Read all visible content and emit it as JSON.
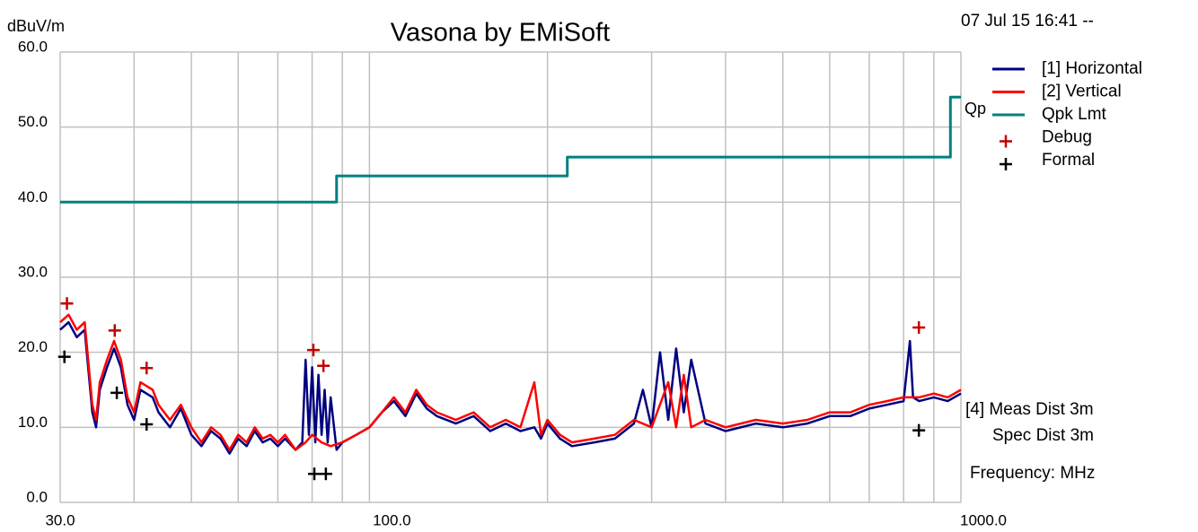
{
  "chart_data": {
    "type": "line",
    "title": "Vasona by EMiSoft",
    "ylabel": "dBuV/m",
    "timestamp": "07 Jul 15 16:41 --",
    "annotations": [
      "[4] Meas Dist 3m",
      "Spec Dist 3m",
      "Frequency: MHz"
    ],
    "limit_label": "Qp",
    "xscale": "log",
    "xlim": [
      30,
      1000
    ],
    "ylim": [
      0,
      60
    ],
    "xticks": [
      {
        "value": 30,
        "label": "30.0"
      },
      {
        "value": 100,
        "label": "100.0"
      },
      {
        "value": 1000,
        "label": "1000.0"
      }
    ],
    "xgrid": [
      40,
      50,
      60,
      70,
      80,
      90,
      200,
      300,
      400,
      500,
      600,
      700,
      800,
      900
    ],
    "yticks": [
      {
        "value": 0,
        "label": "0.0"
      },
      {
        "value": 10,
        "label": "10.0"
      },
      {
        "value": 20,
        "label": "20.0"
      },
      {
        "value": 30,
        "label": "30.0"
      },
      {
        "value": 40,
        "label": "40.0"
      },
      {
        "value": 50,
        "label": "50.0"
      },
      {
        "value": 60,
        "label": "60.0"
      }
    ],
    "grid": true,
    "series": [
      {
        "name": "[1] Horizontal",
        "color": "#000080",
        "style": "line",
        "x": [
          30,
          31,
          32,
          33,
          34,
          34.5,
          35,
          36,
          37,
          38,
          39,
          40,
          41,
          42,
          43,
          44,
          46,
          48,
          50,
          52,
          54,
          56,
          58,
          60,
          62,
          64,
          66,
          68,
          70,
          72,
          75,
          77,
          78,
          79,
          80,
          81,
          82,
          83,
          84,
          85,
          86,
          88,
          90,
          95,
          100,
          105,
          110,
          115,
          120,
          125,
          130,
          140,
          150,
          160,
          170,
          180,
          190,
          195,
          200,
          210,
          220,
          240,
          260,
          280,
          290,
          300,
          310,
          320,
          330,
          340,
          350,
          370,
          400,
          450,
          500,
          550,
          600,
          650,
          700,
          750,
          800,
          820,
          830,
          850,
          900,
          950,
          1000
        ],
        "values": [
          23,
          24,
          22,
          23,
          12,
          10,
          15,
          18,
          20.5,
          18,
          13,
          11,
          15,
          14.5,
          14,
          12,
          10,
          12.5,
          9,
          7.5,
          9.5,
          8.5,
          6.5,
          8.5,
          7.5,
          9.5,
          8,
          8.5,
          7.5,
          8.5,
          7,
          8,
          19,
          9,
          18,
          8,
          17,
          9,
          15,
          8,
          14,
          7,
          8,
          9,
          10,
          12,
          13.5,
          11.5,
          14.5,
          12.5,
          11.5,
          10.5,
          11.5,
          9.5,
          10.5,
          9.5,
          10,
          8.5,
          10.5,
          8.5,
          7.5,
          8,
          8.5,
          10.5,
          15,
          10,
          20,
          11,
          20.5,
          12,
          19,
          10.5,
          9.5,
          10.5,
          10,
          10.5,
          11.5,
          11.5,
          12.5,
          13,
          13.5,
          21.5,
          14,
          13.5,
          14,
          13.5,
          14.5
        ]
      },
      {
        "name": "[2] Vertical",
        "color": "#ff0000",
        "style": "line",
        "x": [
          30,
          31,
          32,
          33,
          34,
          34.5,
          35,
          36,
          37,
          38,
          39,
          40,
          41,
          42,
          43,
          44,
          46,
          48,
          50,
          52,
          54,
          56,
          58,
          60,
          62,
          64,
          66,
          68,
          70,
          72,
          75,
          78,
          80,
          83,
          86,
          90,
          95,
          100,
          105,
          110,
          115,
          120,
          125,
          130,
          140,
          150,
          160,
          170,
          180,
          190,
          195,
          200,
          210,
          220,
          240,
          260,
          280,
          300,
          320,
          330,
          340,
          350,
          370,
          400,
          450,
          500,
          550,
          600,
          650,
          700,
          750,
          800,
          850,
          900,
          950,
          1000
        ],
        "values": [
          24,
          25,
          23,
          24,
          13,
          11,
          16,
          19,
          21.5,
          19,
          14,
          12,
          16,
          15.5,
          15,
          13,
          11,
          13,
          10,
          8,
          10,
          9,
          7,
          9,
          8,
          10,
          8.5,
          9,
          8,
          9,
          7,
          8,
          9,
          8,
          7.5,
          8,
          9,
          10,
          12,
          14,
          12,
          15,
          13,
          12,
          11,
          12,
          10,
          11,
          10,
          16,
          9,
          11,
          9,
          8,
          8.5,
          9,
          11,
          10,
          16,
          10,
          17,
          10,
          11,
          10,
          11,
          10.5,
          11,
          12,
          12,
          13,
          13.5,
          14,
          14,
          14.5,
          14,
          15
        ]
      },
      {
        "name": "Qpk Lmt",
        "color": "#008080",
        "style": "line",
        "x": [
          30,
          88,
          88,
          216,
          216,
          960,
          960,
          1000
        ],
        "values": [
          40,
          40,
          43.5,
          43.5,
          46,
          46,
          54,
          54
        ]
      },
      {
        "name": "Debug",
        "color": "#c00000",
        "style": "marker",
        "x": [
          30.8,
          37.1,
          42,
          80.4,
          83.6,
          849
        ],
        "values": [
          26.5,
          22.9,
          17.9,
          20.3,
          18.2,
          23.3
        ]
      },
      {
        "name": "Formal",
        "color": "#000000",
        "style": "marker",
        "x": [
          30.5,
          37.4,
          42,
          80.7,
          84.4,
          849
        ],
        "values": [
          19.4,
          14.6,
          10.4,
          3.8,
          3.8,
          9.6
        ]
      }
    ]
  }
}
